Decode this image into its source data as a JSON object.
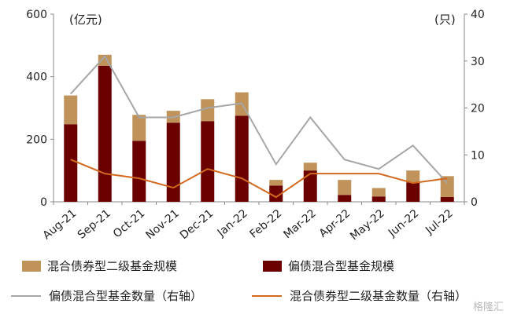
{
  "chart_data": {
    "type": "bar",
    "categories": [
      "Aug-21",
      "Sep-21",
      "Oct-21",
      "Nov-21",
      "Dec-21",
      "Jan-22",
      "Feb-22",
      "Mar-22",
      "Apr-22",
      "May-22",
      "Jun-22",
      "Jul-22"
    ],
    "series": [
      {
        "name": "偏债混合型基金规模",
        "type": "bar",
        "stack": "scale",
        "axis": "left",
        "color": "#6b0000",
        "values": [
          248,
          435,
          195,
          253,
          258,
          275,
          52,
          100,
          22,
          17,
          62,
          15
        ]
      },
      {
        "name": "混合债券型二级基金规模",
        "type": "bar",
        "stack": "scale",
        "axis": "left",
        "color": "#c0935a",
        "values": [
          92,
          35,
          83,
          38,
          70,
          75,
          18,
          25,
          48,
          27,
          38,
          67
        ]
      },
      {
        "name": "偏债混合型基金数量（右轴）",
        "type": "line",
        "axis": "right",
        "color": "#a6a6a6",
        "values": [
          23,
          31,
          18,
          18,
          20,
          21,
          8,
          18,
          9,
          7,
          12,
          4
        ]
      },
      {
        "name": "混合债券型二级基金数量（右轴）",
        "type": "line",
        "axis": "right",
        "color": "#d2691e",
        "values": [
          9,
          6,
          5,
          3,
          7,
          5,
          1,
          6,
          6,
          6,
          4,
          5
        ]
      }
    ],
    "ylim_left": [
      0,
      600
    ],
    "yticks_left": [
      0,
      200,
      400,
      600
    ],
    "ylim_right": [
      0,
      40
    ],
    "yticks_right": [
      0,
      10,
      20,
      30,
      40
    ],
    "ylabel_left": "(亿元)",
    "ylabel_right": "(只)",
    "grid": false,
    "legend_placement": "bottom"
  },
  "watermark": "格隆汇"
}
